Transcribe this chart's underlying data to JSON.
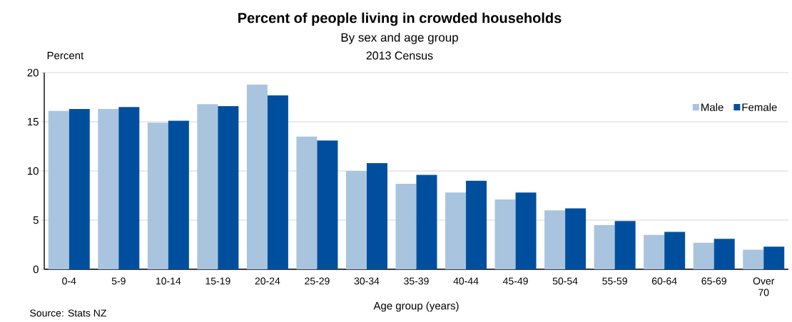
{
  "chart_data": {
    "type": "bar",
    "title": "Percent of people living in crowded households",
    "subtitle": "By sex and age group",
    "annotations": [
      "2013 Census",
      "Source: Stats NZ"
    ],
    "xlabel": "Age group (years)",
    "ylabel": "Percent",
    "categories": [
      "0-4",
      "5-9",
      "10-14",
      "15-19",
      "20-24",
      "25-29",
      "30-34",
      "35-39",
      "40-44",
      "45-49",
      "50-54",
      "55-59",
      "60-64",
      "65-69",
      "Over 70"
    ],
    "series": [
      {
        "name": "Male",
        "color": "#a9c4de",
        "values": [
          16.1,
          16.3,
          14.9,
          16.8,
          18.8,
          13.5,
          10.0,
          8.7,
          7.8,
          7.1,
          6.0,
          4.5,
          3.5,
          2.7,
          2.0
        ]
      },
      {
        "name": "Female",
        "color": "#004f9f",
        "values": [
          16.3,
          16.5,
          15.1,
          16.6,
          17.7,
          13.1,
          10.8,
          9.6,
          9.0,
          7.8,
          6.2,
          4.9,
          3.8,
          3.1,
          2.3
        ]
      }
    ],
    "ylim": [
      0,
      20
    ],
    "yticks": [
      0,
      5,
      10,
      15,
      20
    ],
    "grid": "y",
    "legend": "top right"
  }
}
